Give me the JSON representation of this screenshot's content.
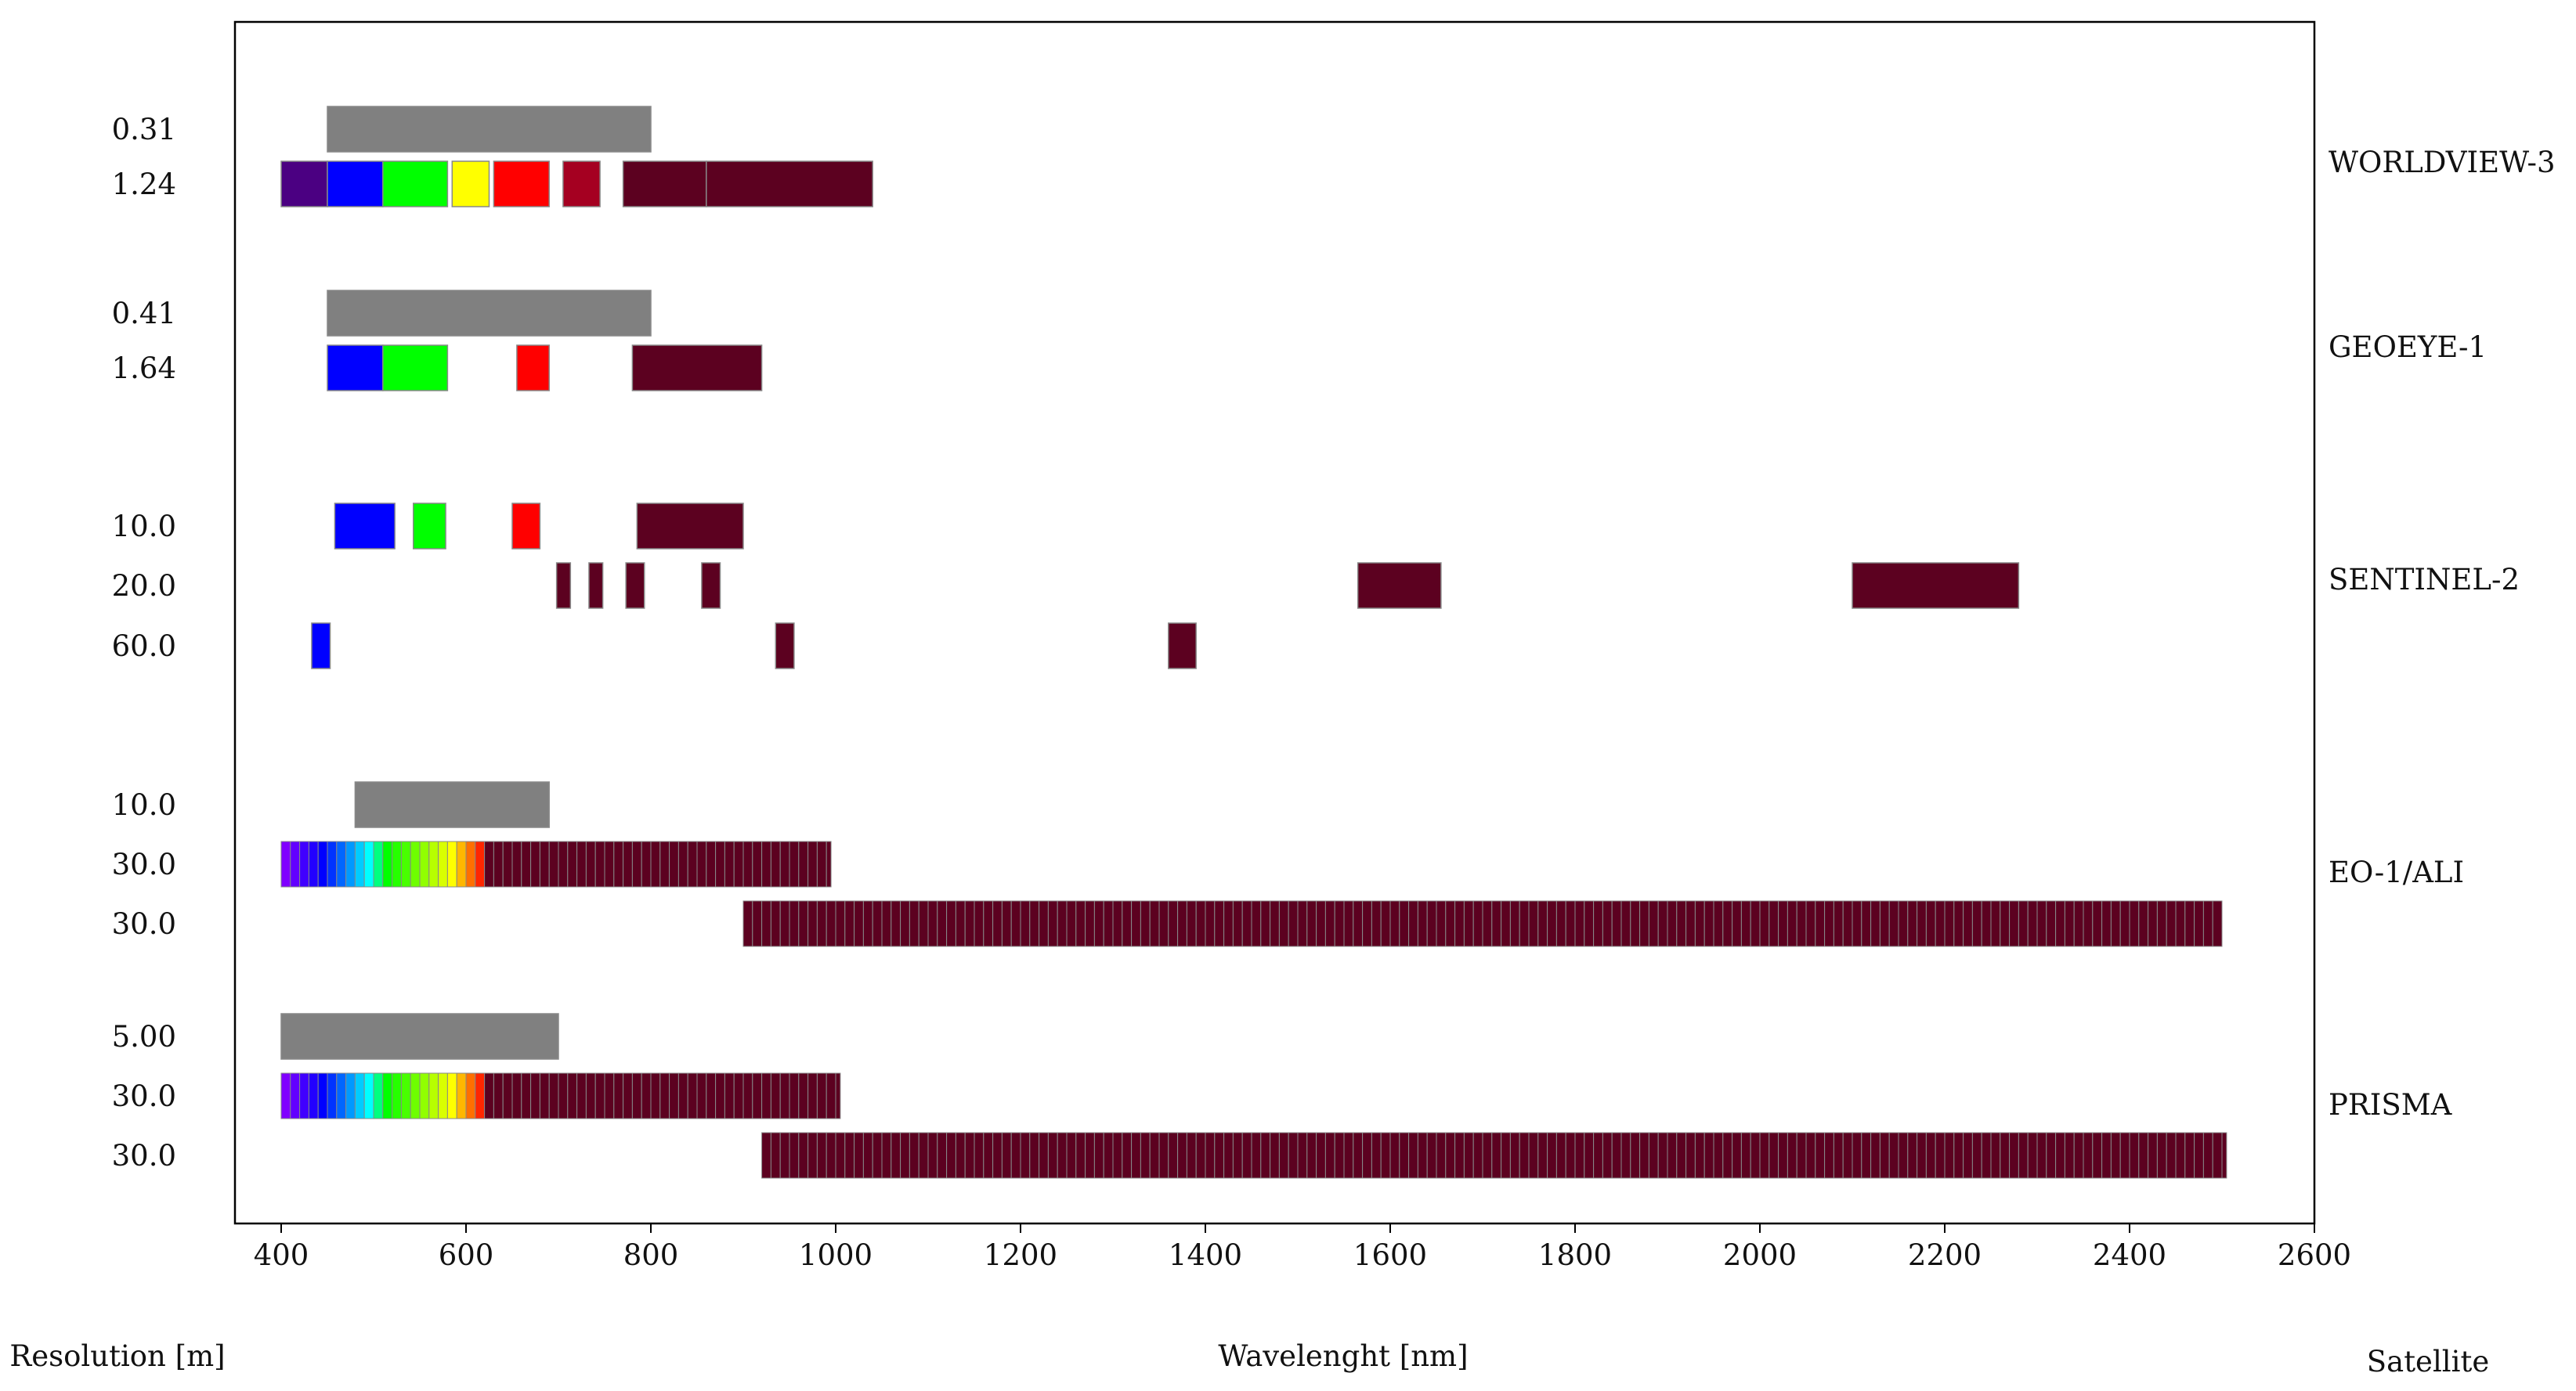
{
  "chart_data": {
    "type": "bar",
    "subtype": "spectral-band-coverage",
    "xlabel": "Wavelenght [nm]",
    "left_axis_label": "Resolution [m]",
    "right_axis_label": "Satellite",
    "xlim": [
      350,
      2600
    ],
    "xticks": [
      400,
      600,
      800,
      1000,
      1200,
      1400,
      1600,
      1800,
      2000,
      2200,
      2400,
      2600
    ],
    "grid": false,
    "colors": {
      "panchromatic": "#808080",
      "coastal": "#4b0082",
      "blue": "#0000ff",
      "green": "#00ff00",
      "yellow": "#ffff00",
      "red": "#ff0000",
      "red_edge": "#a50021",
      "infrared": "#5c0120",
      "band_edge": "#888888"
    },
    "satellites": [
      {
        "name": "WORLDVIEW-3",
        "rows": [
          {
            "resolution": "0.31",
            "bands": [
              {
                "start": 450,
                "end": 800,
                "color": "panchromatic"
              }
            ]
          },
          {
            "resolution": "1.24",
            "bands": [
              {
                "start": 400,
                "end": 450,
                "color": "coastal"
              },
              {
                "start": 450,
                "end": 510,
                "color": "blue"
              },
              {
                "start": 510,
                "end": 580,
                "color": "green"
              },
              {
                "start": 585,
                "end": 625,
                "color": "yellow"
              },
              {
                "start": 630,
                "end": 690,
                "color": "red"
              },
              {
                "start": 705,
                "end": 745,
                "color": "red_edge"
              },
              {
                "start": 770,
                "end": 860,
                "color": "infrared"
              },
              {
                "start": 860,
                "end": 1040,
                "color": "infrared"
              }
            ]
          }
        ]
      },
      {
        "name": "GEOEYE-1",
        "rows": [
          {
            "resolution": "0.41",
            "bands": [
              {
                "start": 450,
                "end": 800,
                "color": "panchromatic"
              }
            ]
          },
          {
            "resolution": "1.64",
            "bands": [
              {
                "start": 450,
                "end": 510,
                "color": "blue"
              },
              {
                "start": 510,
                "end": 580,
                "color": "green"
              },
              {
                "start": 655,
                "end": 690,
                "color": "red"
              },
              {
                "start": 780,
                "end": 920,
                "color": "infrared"
              }
            ]
          }
        ]
      },
      {
        "name": "SENTINEL-2",
        "rows": [
          {
            "resolution": "10.0",
            "bands": [
              {
                "start": 458,
                "end": 523,
                "color": "blue"
              },
              {
                "start": 543,
                "end": 578,
                "color": "green"
              },
              {
                "start": 650,
                "end": 680,
                "color": "red"
              },
              {
                "start": 785,
                "end": 900,
                "color": "infrared"
              }
            ]
          },
          {
            "resolution": "20.0",
            "bands": [
              {
                "start": 698,
                "end": 713,
                "color": "infrared"
              },
              {
                "start": 733,
                "end": 748,
                "color": "infrared"
              },
              {
                "start": 773,
                "end": 793,
                "color": "infrared"
              },
              {
                "start": 855,
                "end": 875,
                "color": "infrared"
              },
              {
                "start": 1565,
                "end": 1655,
                "color": "infrared"
              },
              {
                "start": 2100,
                "end": 2280,
                "color": "infrared"
              }
            ]
          },
          {
            "resolution": "60.0",
            "bands": [
              {
                "start": 433,
                "end": 453,
                "color": "blue"
              },
              {
                "start": 935,
                "end": 955,
                "color": "infrared"
              },
              {
                "start": 1360,
                "end": 1390,
                "color": "infrared"
              }
            ]
          }
        ]
      },
      {
        "name": "EO-1/ALI",
        "rows": [
          {
            "resolution": "10.0",
            "bands": [
              {
                "start": 480,
                "end": 690,
                "color": "panchromatic"
              }
            ]
          },
          {
            "resolution": "30.0",
            "spectrum": {
              "start": 400,
              "end": 995,
              "step": 10
            }
          },
          {
            "resolution": "30.0",
            "spectrum": {
              "start": 900,
              "end": 2500,
              "step": 10
            }
          }
        ]
      },
      {
        "name": "PRISMA",
        "rows": [
          {
            "resolution": "5.00",
            "bands": [
              {
                "start": 400,
                "end": 700,
                "color": "panchromatic"
              }
            ]
          },
          {
            "resolution": "30.0",
            "spectrum": {
              "start": 400,
              "end": 1005,
              "step": 10
            }
          },
          {
            "resolution": "30.0",
            "spectrum": {
              "start": 920,
              "end": 2505,
              "step": 10
            }
          }
        ]
      }
    ]
  }
}
